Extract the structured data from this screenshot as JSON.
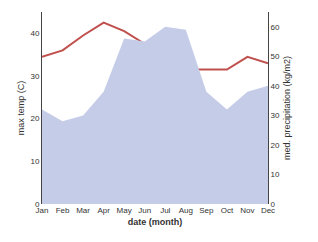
{
  "chart_data": {
    "type": "line",
    "categories": [
      "Jan",
      "Feb",
      "Mar",
      "Apr",
      "May",
      "Jun",
      "Jul",
      "Aug",
      "Sep",
      "Oct",
      "Nov",
      "Dec"
    ],
    "xlabel": "date (month)",
    "ylabel": "max temp (C)",
    "y2label": "med. precipitation (kg/m2)",
    "series": [
      {
        "type": "area",
        "axis": "y2",
        "color": "#c5cce8",
        "values": [
          32,
          28,
          30,
          38,
          56,
          55,
          60,
          59,
          38,
          32,
          38,
          40
        ]
      },
      {
        "type": "line",
        "color": "#c0504d",
        "values": [
          34.5,
          36.0,
          39.5,
          42.5,
          40.5,
          37.5,
          31.5,
          31.5,
          31.5,
          31.5,
          34.5,
          33.0
        ]
      }
    ],
    "ylim": [
      0,
      45
    ],
    "yticks": [
      0,
      10,
      20,
      30,
      40
    ],
    "y2lim": [
      0,
      65
    ],
    "y2ticks": [
      0,
      10,
      20,
      30,
      40,
      50,
      60
    ],
    "grid": false
  }
}
